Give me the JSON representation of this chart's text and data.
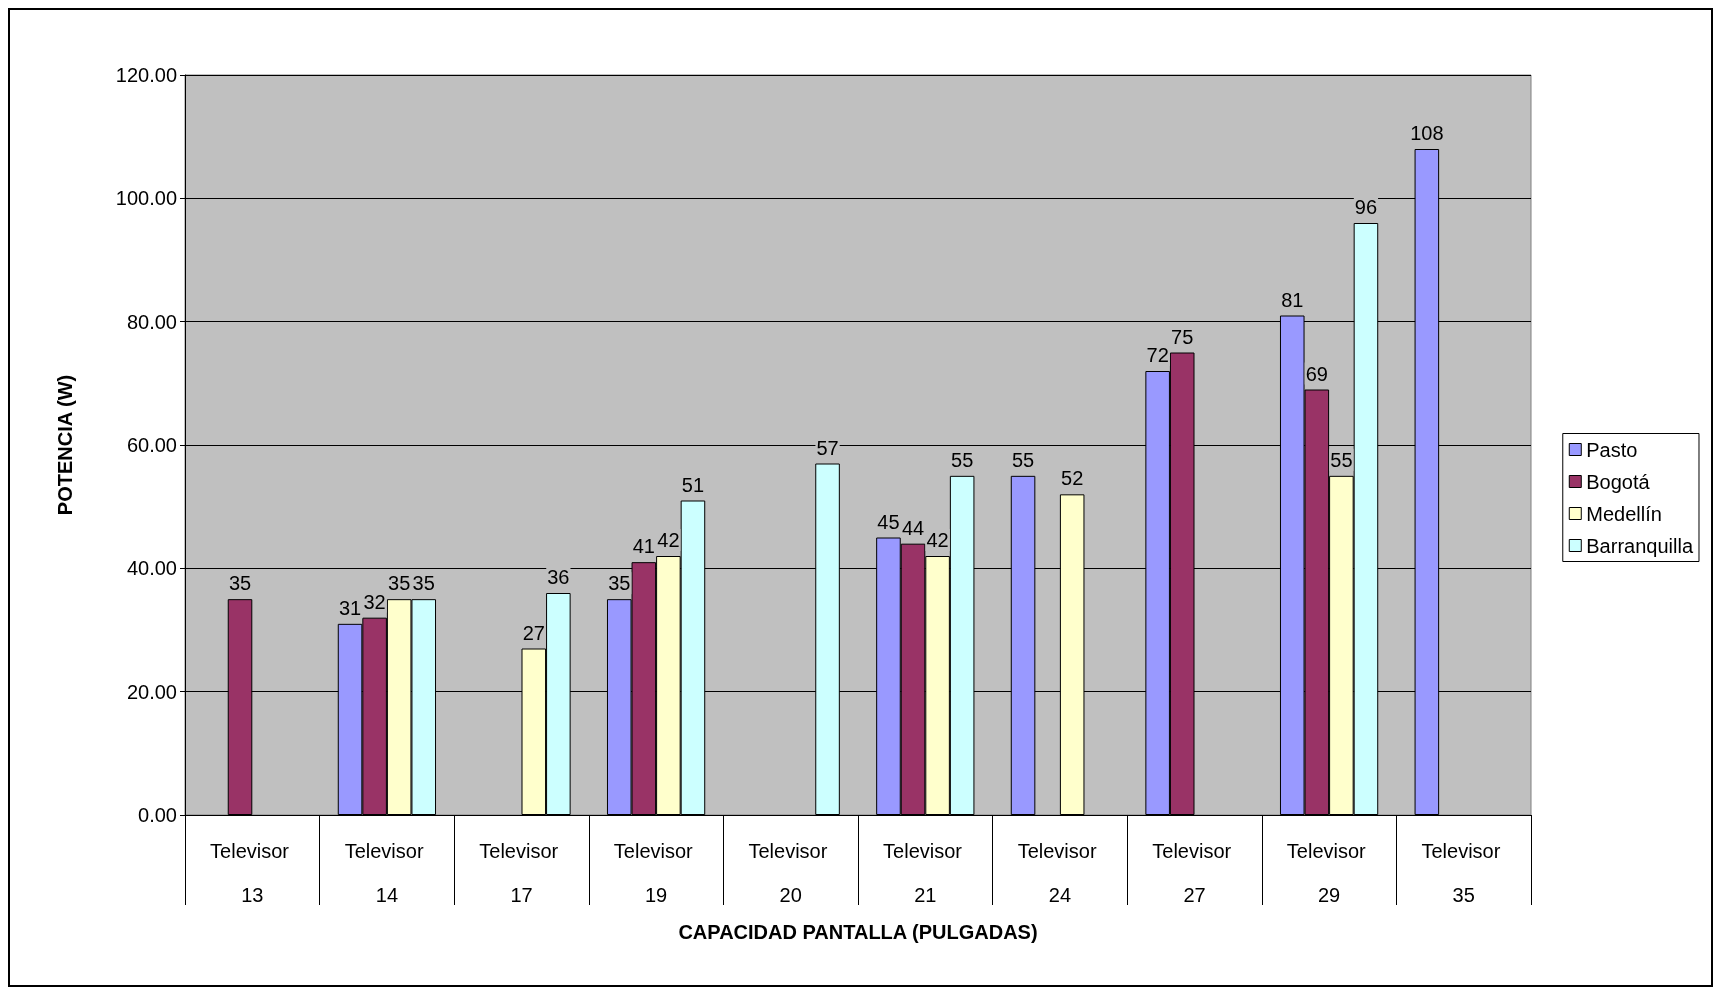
{
  "chart_data": {
    "type": "bar",
    "xlabel": "CAPACIDAD PANTALLA (PULGADAS)",
    "ylabel": "POTENCIA (W)",
    "categories": [
      "Televisor 13",
      "Televisor 14",
      "Televisor 17",
      "Televisor 19",
      "Televisor 20",
      "Televisor 21",
      "Televisor 24",
      "Televisor 27",
      "Televisor 29",
      "Televisor 35"
    ],
    "series": [
      {
        "name": "Pasto",
        "color": "#9999ff",
        "values": [
          null,
          31,
          null,
          35,
          null,
          45,
          55,
          72,
          81,
          108
        ]
      },
      {
        "name": "Bogotá",
        "color": "#993366",
        "values": [
          35,
          32,
          null,
          41,
          null,
          44,
          null,
          75,
          69,
          null
        ]
      },
      {
        "name": "Medellín",
        "color": "#ffffcc",
        "values": [
          null,
          35,
          27,
          42,
          null,
          42,
          52,
          null,
          55,
          null
        ]
      },
      {
        "name": "Barranquilla",
        "color": "#ccffff",
        "values": [
          null,
          35,
          36,
          51,
          57,
          55,
          null,
          null,
          96,
          null
        ]
      }
    ],
    "ylim": [
      0,
      120
    ],
    "yticks": [
      {
        "value": 0,
        "label": "0.00"
      },
      {
        "value": 20,
        "label": "20.00"
      },
      {
        "value": 40,
        "label": "40.00"
      },
      {
        "value": 60,
        "label": "60.00"
      },
      {
        "value": 80,
        "label": "80.00"
      },
      {
        "value": 100,
        "label": "100.00"
      },
      {
        "value": 120,
        "label": "120.00"
      }
    ],
    "grid": "y",
    "legend": "right",
    "data_labels": true
  }
}
